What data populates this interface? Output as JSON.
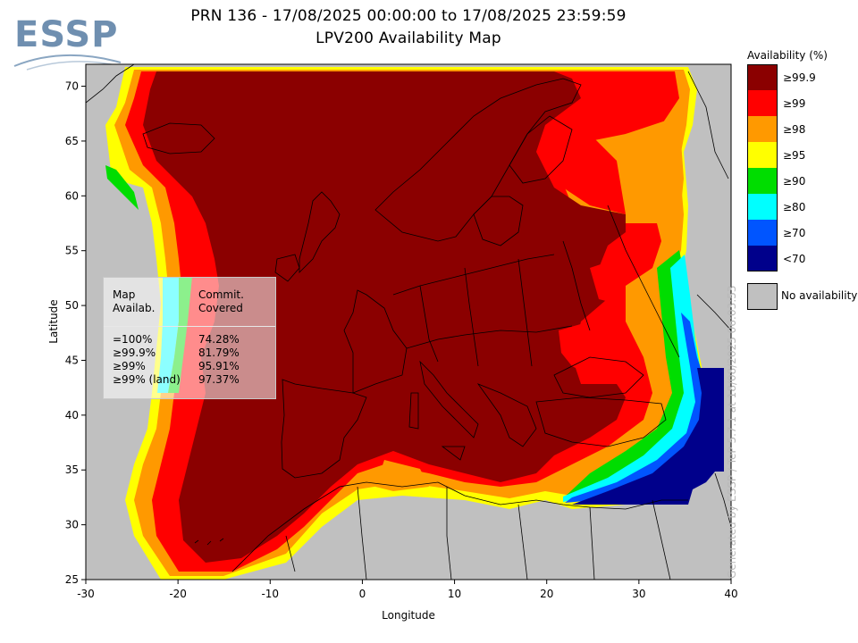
{
  "header": {
    "title_line1": "PRN 136 - 17/08/2025 00:00:00 to 17/08/2025 23:59:59",
    "title_line2": "LPV200 Availability Map",
    "logo_text": "ESSP"
  },
  "axes": {
    "xlabel": "Longitude",
    "ylabel": "Latitude",
    "x_ticks": [
      "-30",
      "-20",
      "-10",
      "0",
      "10",
      "20",
      "30",
      "40"
    ],
    "y_ticks": [
      "25",
      "30",
      "35",
      "40",
      "45",
      "50",
      "55",
      "60",
      "65",
      "70"
    ],
    "x_range": [
      -30,
      40
    ],
    "y_range": [
      25,
      72
    ]
  },
  "legend": {
    "title": "Availability (%)",
    "items": [
      {
        "label": "≥99.9",
        "color": "#8b0000"
      },
      {
        "label": "≥99",
        "color": "#ff0000"
      },
      {
        "label": "≥98",
        "color": "#ff9900"
      },
      {
        "label": "≥95",
        "color": "#ffff00"
      },
      {
        "label": "≥90",
        "color": "#00dd00"
      },
      {
        "label": "≥80",
        "color": "#00ffff"
      },
      {
        "label": "≥70",
        "color": "#0055ff"
      },
      {
        "label": "<70",
        "color": "#00008b"
      }
    ],
    "no_availability": {
      "label": "No availability",
      "color": "#c0c0c0"
    }
  },
  "stats_box": {
    "col1_header": [
      "Map",
      "Availab."
    ],
    "col2_header": [
      "Commit.",
      "Covered"
    ],
    "rows": [
      {
        "label": "=100%",
        "value": "74.28%"
      },
      {
        "label": "≥99.9%",
        "value": "81.79%"
      },
      {
        "label": "≥99%",
        "value": "95.91%"
      },
      {
        "label": "≥99% (land)",
        "value": "97.37%"
      }
    ]
  },
  "footer": {
    "generated_text": "Generated by ESSP / TeP 5.7.1 at 18/08/2025 06:03:53"
  }
}
